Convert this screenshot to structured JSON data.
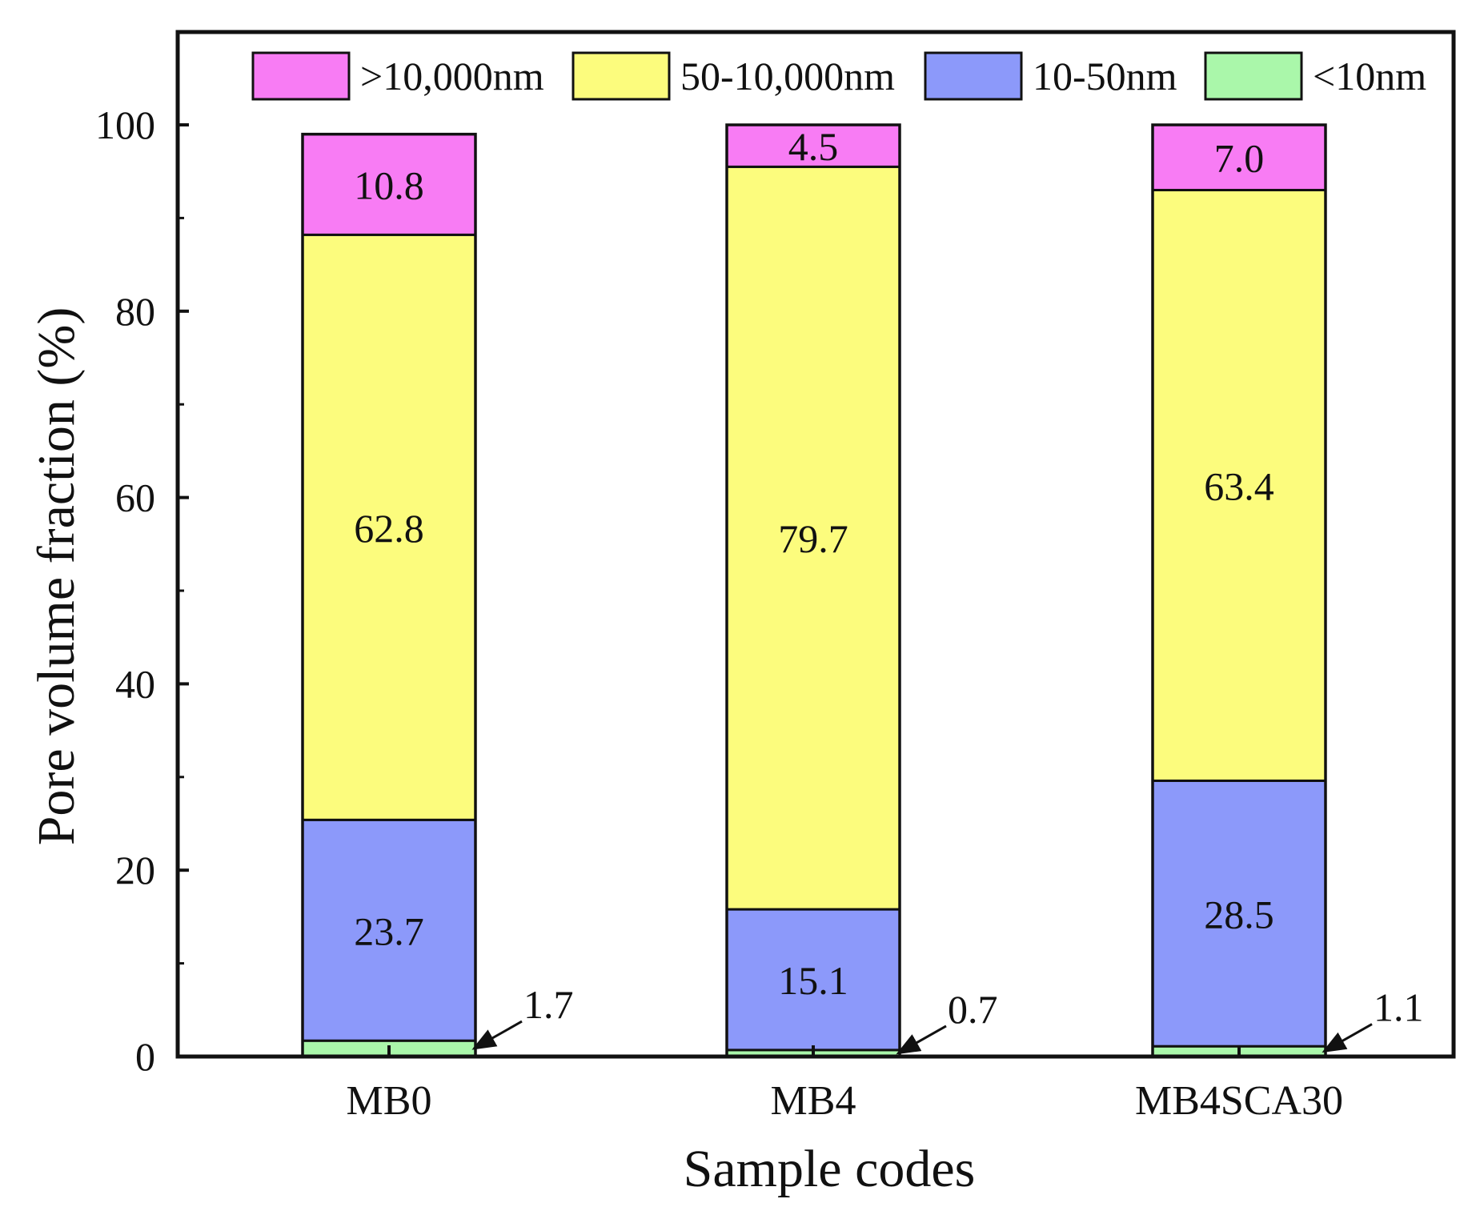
{
  "chart_data": {
    "type": "bar",
    "stacked": true,
    "categories": [
      "MB0",
      "MB4",
      "MB4SCA30"
    ],
    "series": [
      {
        "name": "<10nm",
        "color": "#aaf7aa",
        "values": [
          1.7,
          0.7,
          1.1
        ]
      },
      {
        "name": "10-50nm",
        "color": "#8c99fa",
        "values": [
          23.7,
          15.1,
          28.5
        ]
      },
      {
        "name": "50-10,000nm",
        "color": "#fcfc7d",
        "values": [
          62.8,
          79.7,
          63.4
        ]
      },
      {
        "name": ">10,000nm",
        "color": "#f87cf4",
        "values": [
          10.8,
          4.5,
          7.0
        ]
      }
    ],
    "legend_order": [
      ">10,000nm",
      "50-10,000nm",
      "10-50nm",
      "<10nm"
    ],
    "legend_position": "top",
    "xlabel": "Sample codes",
    "ylabel": "Pore volume fraction (%)",
    "ylim": [
      0,
      100
    ],
    "yticks": [
      0,
      20,
      40,
      60,
      80,
      100
    ],
    "grid": false,
    "small_value_labels": [
      "1.7",
      "0.7",
      "1.1"
    ]
  }
}
